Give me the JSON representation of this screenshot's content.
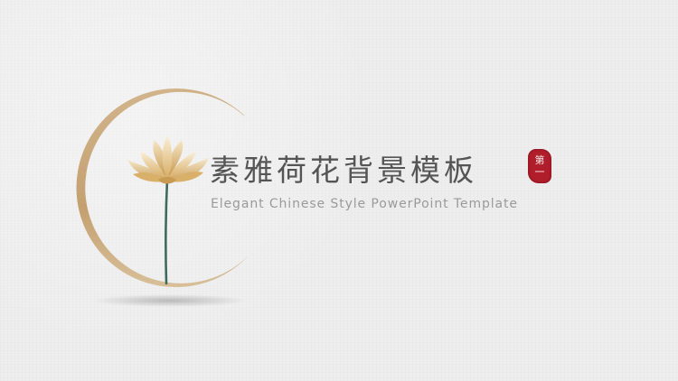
{
  "slide": {
    "title": "素雅荷花背景模板",
    "subtitle": "Elegant Chinese Style PowerPoint Template",
    "seal": {
      "chars": [
        "第",
        "一"
      ],
      "color": "#b01e2c"
    }
  },
  "decor": {
    "icons": [
      "lotus-flower-icon",
      "circle-ring-icon"
    ],
    "ring_color": "#c9a77c",
    "stem_color": "#3f6b5f"
  }
}
